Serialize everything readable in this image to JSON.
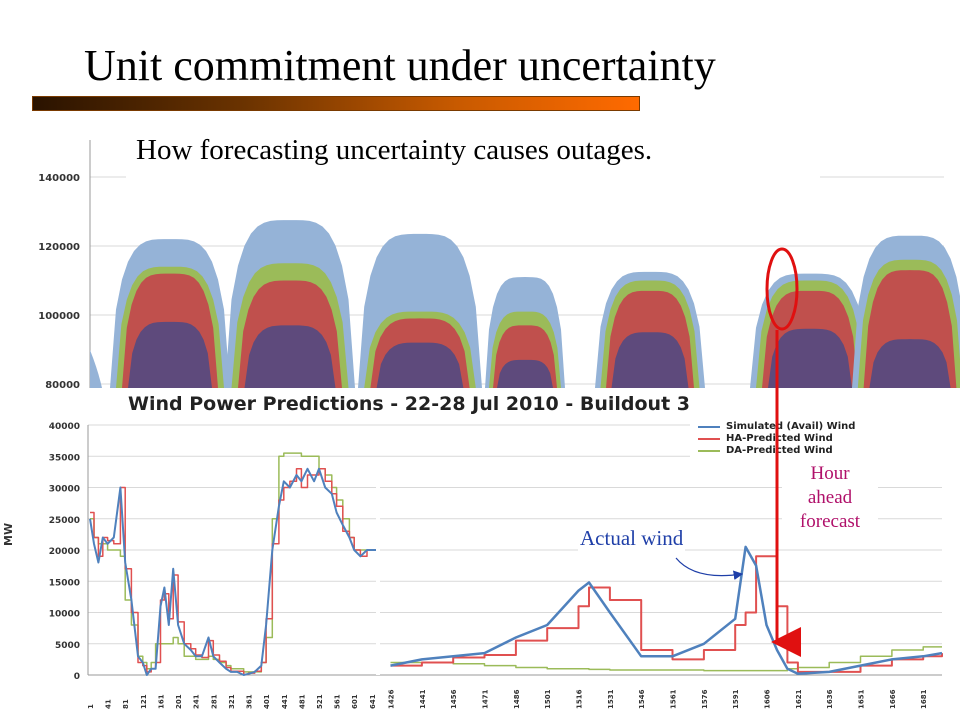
{
  "slide": {
    "title": "Unit commitment under uncertainty",
    "subtitle": "How forecasting uncertainty causes outages."
  },
  "annotations": {
    "hour_ahead": [
      "Hour",
      "ahead",
      "forecast"
    ],
    "actual_wind": "Actual wind"
  },
  "colors": {
    "accent_bar": "#ff6a00",
    "highlight": "#e01010",
    "annotation_magenta": "#b0106a",
    "annotation_blue": "#1f3fa8"
  },
  "chart_data": [
    {
      "type": "area",
      "title": "",
      "ylim": [
        80000,
        140000
      ],
      "yticks": [
        "140000",
        "120000",
        "100000",
        "80000"
      ],
      "ytick_values": [
        140000,
        120000,
        100000,
        80000
      ],
      "grid": true,
      "series_colors": [
        "#5e4a7c",
        "#c0504d",
        "#9bbb59",
        "#95b3d7"
      ],
      "days": [
        {
          "peak_total": 122000,
          "peak_layer1": 98000,
          "peak_layer2": 112000,
          "peak_layer3": 114000
        },
        {
          "peak_total": 127500,
          "peak_layer1": 97000,
          "peak_layer2": 110000,
          "peak_layer3": 115000
        },
        {
          "peak_total": 123500,
          "peak_layer1": 92000,
          "peak_layer2": 99000,
          "peak_layer3": 101000
        },
        {
          "peak_total": 111000,
          "peak_layer1": 87000,
          "peak_layer2": 97000,
          "peak_layer3": 101000
        },
        {
          "peak_total": 112500,
          "peak_layer1": 95000,
          "peak_layer2": 107000,
          "peak_layer3": 110000
        },
        {
          "peak_total": 112000,
          "peak_layer1": 96000,
          "peak_layer2": 107000,
          "peak_layer3": 110000
        },
        {
          "peak_total": 123000,
          "peak_layer1": 93000,
          "peak_layer2": 113000,
          "peak_layer3": 116000
        }
      ]
    },
    {
      "type": "line",
      "title": "Wind Power Predictions - 22-28 Jul 2010 - Buildout 3",
      "ylabel": "MW",
      "ylim": [
        0,
        40000
      ],
      "yticks": [
        "40000",
        "35000",
        "30000",
        "25000",
        "20000",
        "15000",
        "10000",
        "5000",
        "0"
      ],
      "ytick_values": [
        40000,
        35000,
        30000,
        25000,
        20000,
        15000,
        10000,
        5000,
        0
      ],
      "xticks_left": [
        "1",
        "41",
        "81",
        "121",
        "161",
        "201",
        "241",
        "281",
        "321",
        "361",
        "401",
        "441",
        "481",
        "521",
        "561",
        "601",
        "641"
      ],
      "xticks_right": [
        "1426",
        "1441",
        "1456",
        "1471",
        "1486",
        "1501",
        "1516",
        "1531",
        "1546",
        "1561",
        "1576",
        "1591",
        "1606",
        "1621",
        "1636",
        "1651",
        "1666",
        "1681"
      ],
      "legend": [
        {
          "name": "Simulated (Avail) Wind",
          "color": "#4f81bd"
        },
        {
          "name": "HA-Predicted Wind",
          "color": "#e05050"
        },
        {
          "name": "DA-Predicted Wind",
          "color": "#9bbb59"
        }
      ],
      "series_left": {
        "x": [
          1,
          10,
          20,
          30,
          41,
          55,
          70,
          81,
          95,
          110,
          121,
          130,
          140,
          150,
          161,
          170,
          180,
          190,
          201,
          215,
          230,
          241,
          255,
          270,
          281,
          295,
          310,
          321,
          335,
          350,
          361,
          375,
          390,
          401,
          415,
          430,
          441,
          455,
          470,
          481,
          495,
          510,
          521,
          535,
          550,
          561,
          575,
          590,
          601,
          615,
          630,
          641,
          655
        ],
        "actual": [
          25000,
          21000,
          18000,
          22000,
          21000,
          22000,
          30000,
          18000,
          12000,
          3000,
          2000,
          0,
          1000,
          1000,
          11000,
          14000,
          8000,
          17000,
          8000,
          5000,
          4000,
          3000,
          3000,
          6000,
          3000,
          2000,
          1000,
          500,
          500,
          0,
          200,
          500,
          1500,
          8000,
          20000,
          27000,
          31000,
          30000,
          32000,
          31000,
          33000,
          31000,
          33000,
          30000,
          29000,
          26000,
          24000,
          22000,
          20000,
          19000,
          20000,
          20000,
          20000
        ],
        "ha": [
          26000,
          22000,
          19000,
          22000,
          21500,
          21000,
          30000,
          17000,
          10000,
          2000,
          1500,
          500,
          1000,
          2000,
          12000,
          13000,
          9000,
          16000,
          8500,
          5000,
          4200,
          3200,
          2800,
          5500,
          3200,
          2200,
          1200,
          600,
          600,
          100,
          300,
          600,
          2000,
          9000,
          21000,
          28000,
          30000,
          31000,
          33000,
          30000,
          32000,
          32000,
          33000,
          31000,
          29000,
          27000,
          23000,
          22000,
          20000,
          19000,
          20000,
          20000,
          20000
        ],
        "da": [
          25000,
          22000,
          21000,
          21000,
          20000,
          20000,
          19000,
          12000,
          8000,
          3000,
          2000,
          1000,
          2000,
          5000,
          5000,
          5000,
          5000,
          6000,
          5000,
          3000,
          3000,
          2500,
          2500,
          3000,
          2500,
          2000,
          1500,
          1000,
          1000,
          500,
          500,
          500,
          2000,
          6000,
          25000,
          35000,
          35500,
          35500,
          35500,
          35000,
          35000,
          35000,
          33000,
          32000,
          30000,
          28000,
          25000,
          22000,
          20000,
          20000,
          20000,
          20000,
          20000
        ]
      },
      "series_right": {
        "x": [
          1426,
          1441,
          1456,
          1471,
          1486,
          1501,
          1516,
          1521,
          1531,
          1546,
          1561,
          1576,
          1591,
          1596,
          1601,
          1606,
          1611,
          1616,
          1621,
          1636,
          1651,
          1666,
          1681,
          1690
        ],
        "actual": [
          1500,
          2500,
          3000,
          3500,
          6000,
          8000,
          13500,
          14800,
          10000,
          3000,
          3000,
          5000,
          9000,
          20500,
          17500,
          8000,
          4000,
          1000,
          200,
          500,
          1500,
          2500,
          3000,
          3500
        ],
        "ha": [
          1500,
          2000,
          2800,
          3200,
          5500,
          7500,
          11000,
          14000,
          12000,
          4000,
          2500,
          4000,
          8000,
          10000,
          19000,
          19000,
          11000,
          2000,
          500,
          500,
          1500,
          2500,
          3000,
          3500
        ],
        "da": [
          2000,
          2000,
          1800,
          1500,
          1200,
          1000,
          1000,
          900,
          800,
          800,
          800,
          700,
          700,
          700,
          700,
          700,
          700,
          1000,
          1200,
          2000,
          3000,
          4000,
          4500,
          4500
        ]
      }
    }
  ]
}
